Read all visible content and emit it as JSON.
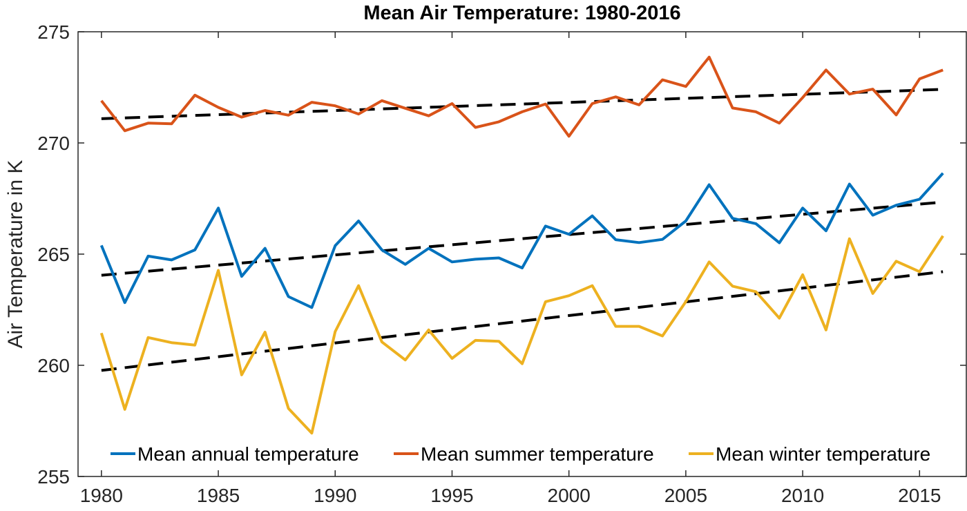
{
  "chart_data": {
    "type": "line",
    "title": "Mean Air Temperature: 1980-2016",
    "xlabel": "",
    "ylabel": "Air Temperature in K",
    "xlim": [
      1979,
      2017
    ],
    "ylim": [
      255,
      275
    ],
    "xticks": [
      1980,
      1985,
      1990,
      1995,
      2000,
      2005,
      2010,
      2015
    ],
    "yticks": [
      255,
      260,
      265,
      270,
      275
    ],
    "grid": false,
    "legend_position": "bottom-inside",
    "x": [
      1980,
      1981,
      1982,
      1983,
      1984,
      1985,
      1986,
      1987,
      1988,
      1989,
      1990,
      1991,
      1992,
      1993,
      1994,
      1995,
      1996,
      1997,
      1998,
      1999,
      2000,
      2001,
      2002,
      2003,
      2004,
      2005,
      2006,
      2007,
      2008,
      2009,
      2010,
      2011,
      2012,
      2013,
      2014,
      2015,
      2016
    ],
    "series": [
      {
        "name": "Mean annual temperature",
        "color": "#0072BD",
        "values": [
          265.39,
          262.82,
          264.91,
          264.74,
          265.19,
          267.07,
          264.0,
          265.26,
          263.09,
          262.6,
          265.38,
          266.49,
          265.19,
          264.54,
          265.26,
          264.65,
          264.77,
          264.83,
          264.38,
          266.26,
          265.89,
          266.72,
          265.65,
          265.52,
          265.66,
          266.49,
          268.12,
          266.61,
          266.37,
          265.51,
          267.07,
          266.05,
          268.15,
          266.75,
          267.2,
          267.47,
          268.64
        ],
        "trend": [
          264.05,
          267.34
        ]
      },
      {
        "name": "Mean summer temperature",
        "color": "#D95319",
        "values": [
          271.9,
          270.55,
          270.89,
          270.86,
          272.15,
          271.6,
          271.16,
          271.46,
          271.25,
          271.83,
          271.67,
          271.3,
          271.9,
          271.56,
          271.22,
          271.77,
          270.7,
          270.95,
          271.4,
          271.75,
          270.3,
          271.77,
          272.07,
          271.71,
          272.84,
          272.54,
          273.86,
          271.57,
          271.4,
          270.89,
          272.04,
          273.28,
          272.2,
          272.42,
          271.26,
          272.88,
          273.28
        ],
        "trend": [
          271.09,
          272.41
        ]
      },
      {
        "name": "Mean winter temperature",
        "color": "#EDB120",
        "values": [
          261.45,
          258.02,
          261.25,
          261.02,
          260.91,
          264.27,
          259.57,
          261.49,
          258.06,
          256.95,
          261.52,
          263.58,
          261.05,
          260.24,
          261.59,
          260.31,
          261.12,
          261.08,
          260.07,
          262.86,
          263.13,
          263.58,
          261.75,
          261.75,
          261.32,
          262.86,
          264.65,
          263.56,
          263.31,
          262.12,
          264.07,
          261.59,
          265.69,
          263.23,
          264.68,
          264.21,
          265.82
        ],
        "trend": [
          259.77,
          264.21
        ]
      }
    ],
    "trend_color": "#000000"
  }
}
